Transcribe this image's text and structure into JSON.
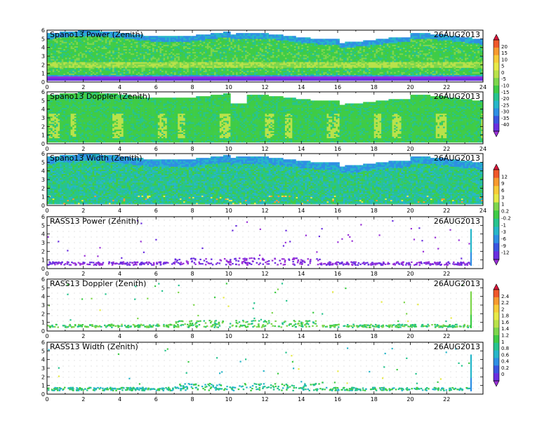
{
  "figure": {
    "date": "26AUG2013"
  },
  "panels": [
    {
      "title": "Spano13 Power (Zenith)",
      "kind": "dense",
      "field": "power",
      "colorbar": 0
    },
    {
      "title": "Spano13 Doppler (Zenith)",
      "kind": "dense",
      "field": "doppler",
      "colorbar": 0
    },
    {
      "title": "Spano13 Width (Zenith)",
      "kind": "dense",
      "field": "width",
      "colorbar": 1
    },
    {
      "title": "RASS13 Power (Zenith)",
      "kind": "sparse",
      "field": "power",
      "colorbar": 1
    },
    {
      "title": "RASS13 Doppler (Zenith)",
      "kind": "sparse",
      "field": "doppler",
      "colorbar": 2
    },
    {
      "title": "RASS13 Width (Zenith)",
      "kind": "sparse",
      "field": "width",
      "colorbar": 2
    }
  ],
  "axes": {
    "xlim": [
      0,
      24
    ],
    "ylim": [
      0,
      6
    ],
    "xticks_labeled_panels_1_3": [
      "0",
      "2",
      "4",
      "6",
      "8",
      "10",
      "12",
      "14",
      "16",
      "18",
      "20",
      "22",
      "24"
    ],
    "xticks_labeled_panels_4_6": [
      "0",
      "2",
      "4",
      "6",
      "8",
      "10",
      "12",
      "14",
      "16",
      "18",
      "20",
      "22"
    ],
    "yticks": [
      "0",
      "1",
      "2",
      "3",
      "4",
      "5",
      "6"
    ]
  },
  "colorbars": [
    {
      "labels": [
        "20",
        "15",
        "10",
        "5",
        "0",
        "-5",
        "-10",
        "-15",
        "-20",
        "-25",
        "-30",
        "-35",
        "-40"
      ],
      "colors": [
        "#d9173a",
        "#f0582a",
        "#f79a2e",
        "#f7cc38",
        "#e7ea48",
        "#b9e24a",
        "#7dd64c",
        "#3fcc46",
        "#27c48e",
        "#27b6c9",
        "#2e8fe3",
        "#3a55e0",
        "#6a2ee0",
        "#9a30d8"
      ]
    },
    {
      "labels": [
        "12",
        "9",
        "6",
        "3",
        "1",
        "0.2",
        "-0.2",
        "-1",
        "-3",
        "-6",
        "-9",
        "-12"
      ],
      "colors": [
        "#d9173a",
        "#f0582a",
        "#f79a2e",
        "#f7cc38",
        "#e7ea48",
        "#7dd64c",
        "#3fcc46",
        "#27c48e",
        "#27b6c9",
        "#2e8fe3",
        "#3a55e0",
        "#6a2ee0",
        "#9a30d8"
      ]
    },
    {
      "labels": [
        "2.4",
        "2.2",
        "2",
        "1.8",
        "1.6",
        "1.4",
        "1.2",
        "1",
        "0.8",
        "0.6",
        "0.4",
        "0.2",
        "0"
      ],
      "colors": [
        "#d9173a",
        "#f0582a",
        "#f79a2e",
        "#f7cc38",
        "#e7ea48",
        "#b9e24a",
        "#7dd64c",
        "#3fcc46",
        "#27c48e",
        "#27b6c9",
        "#2e8fe3",
        "#3a55e0",
        "#6a2ee0",
        "#9a30d8"
      ]
    }
  ],
  "chart_data": [
    {
      "type": "heatmap",
      "title": "Spano13 Power (Zenith)",
      "date": "26AUG2013",
      "x_range": [
        0,
        24
      ],
      "y_range": [
        0,
        6
      ],
      "dominant_value": "-15 to -20",
      "notes": "band near 2 at -5 to 0; strong low values (-35 to -40) near 0.5"
    },
    {
      "type": "heatmap",
      "title": "Spano13 Doppler (Zenith)",
      "date": "26AUG2013",
      "x_range": [
        0,
        24
      ],
      "y_range": [
        0,
        6
      ],
      "dominant_value": "green with yellow-green features 1 to 3"
    },
    {
      "type": "heatmap",
      "title": "Spano13 Width (Zenith)",
      "date": "26AUG2013",
      "x_range": [
        0,
        24
      ],
      "y_range": [
        0,
        6
      ],
      "dominant_value": "-0.2 to -1",
      "notes": "scattered high values near 1"
    },
    {
      "type": "scatter",
      "title": "RASS13 Power (Zenith)",
      "date": "26AUG2013",
      "x_range": [
        0,
        24
      ],
      "y_range": [
        0,
        6
      ],
      "notes": "returns concentrated 0.5-1.2; vertical column near x=23.3"
    },
    {
      "type": "scatter",
      "title": "RASS13 Doppler (Zenith)",
      "date": "26AUG2013",
      "x_range": [
        0,
        24
      ],
      "y_range": [
        0,
        6
      ],
      "notes": "returns concentrated 0.5-1.2; vertical column near x=23.3"
    },
    {
      "type": "scatter",
      "title": "RASS13 Width (Zenith)",
      "date": "26AUG2013",
      "x_range": [
        0,
        24
      ],
      "y_range": [
        0,
        6
      ],
      "notes": "returns concentrated 0.5-1.2; vertical column near x=23.3"
    }
  ]
}
